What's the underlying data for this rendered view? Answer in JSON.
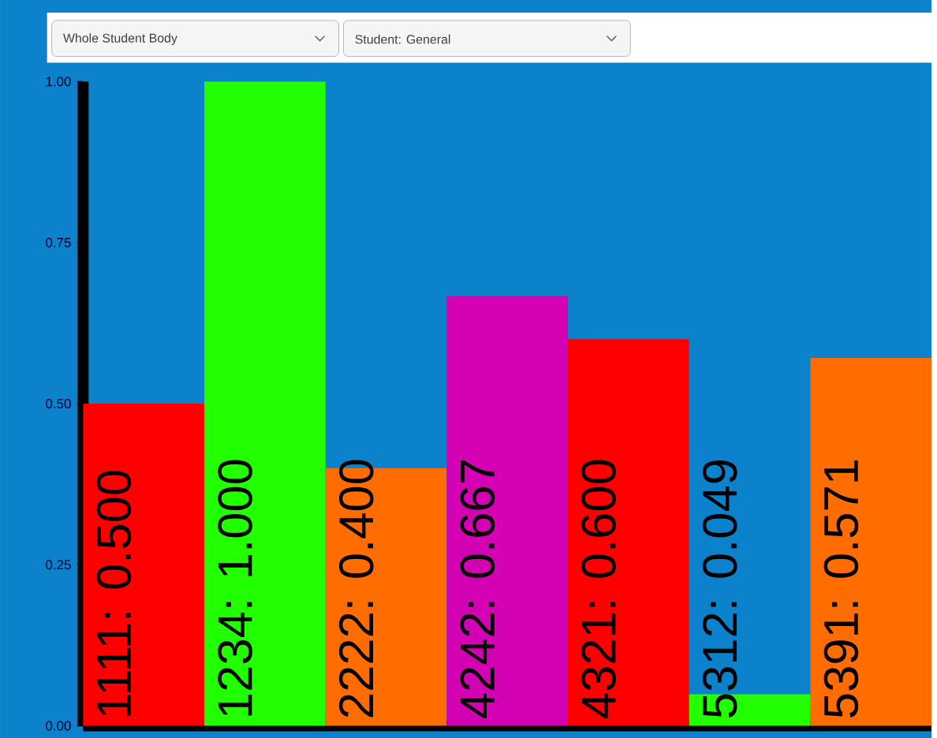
{
  "chart_data": {
    "type": "bar",
    "annotations": [
      "Whole Student Body",
      "Student: General"
    ],
    "categories": [
      null,
      null,
      null,
      null,
      null,
      null,
      null
    ],
    "values": [
      0.5,
      1.0,
      0.4,
      0.667,
      0.6,
      0.049,
      0.571
    ],
    "value_labels": [
      "1111: 0.500",
      "1234: 1.000",
      "2222: 0.400",
      "4242: 0.667",
      "4321: 0.600",
      "5312: 0.049",
      "5391: 0.571"
    ],
    "colors": [
      "#ff0000",
      "#22ff00",
      "#ff6c00",
      "#d400b4",
      "#ff0000",
      "#22ff00",
      "#ff6c00"
    ],
    "ylim": [
      0,
      1
    ],
    "yticks": [
      {
        "value": 0,
        "label": "0.00"
      },
      {
        "value": 0.25,
        "label": "0.25"
      },
      {
        "value": 0.5,
        "label": "0.50"
      },
      {
        "value": 0.75,
        "label": "0.75"
      },
      {
        "value": 1,
        "label": "1.00"
      }
    ],
    "grid": false
  }
}
